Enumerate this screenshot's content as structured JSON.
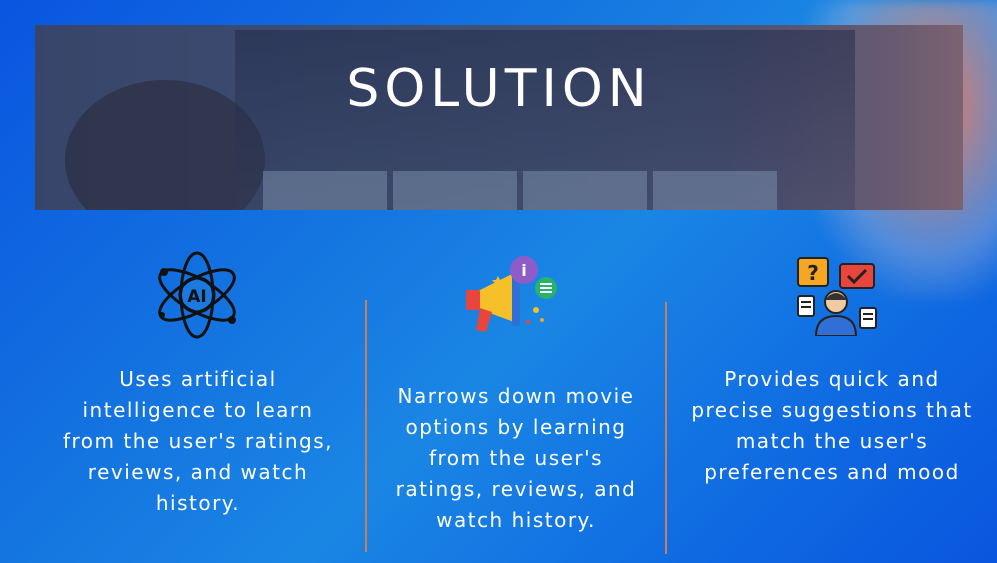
{
  "banner": {
    "title": "SOLUTION"
  },
  "columns": [
    {
      "icon": "ai-atom-icon",
      "text": "Uses artificial\nintelligence to learn\nfrom the user's ratings,\nreviews, and watch\nhistory."
    },
    {
      "icon": "megaphone-icon",
      "text": "Narrows down movie\noptions by learning\nfrom the user's\nratings, reviews, and\nwatch history."
    },
    {
      "icon": "user-questions-icon",
      "text": "Provides quick and\nprecise suggestions that\nmatch the user's\npreferences and mood"
    }
  ],
  "colors": {
    "divider": "#c9805a",
    "text": "#ffffff"
  }
}
